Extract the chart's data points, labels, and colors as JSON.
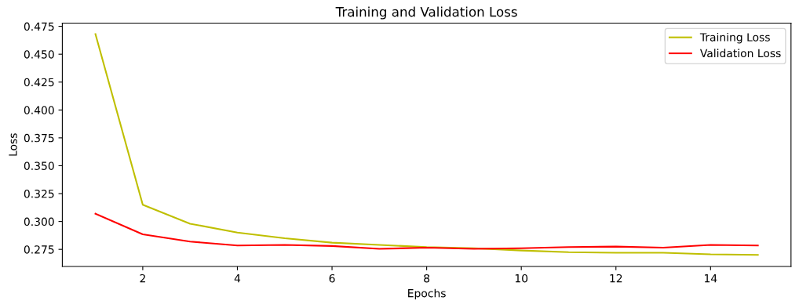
{
  "chart_data": {
    "type": "line",
    "title": "Training and Validation Loss",
    "xlabel": "Epochs",
    "ylabel": "Loss",
    "x": [
      1,
      2,
      3,
      4,
      5,
      6,
      7,
      8,
      9,
      10,
      11,
      12,
      13,
      14,
      15
    ],
    "series": [
      {
        "name": "Training Loss",
        "color": "#bfbf00",
        "values": [
          0.468,
          0.315,
          0.298,
          0.29,
          0.285,
          0.281,
          0.279,
          0.277,
          0.276,
          0.274,
          0.2725,
          0.272,
          0.272,
          0.2705,
          0.27
        ]
      },
      {
        "name": "Validation Loss",
        "color": "#ff0000",
        "values": [
          0.307,
          0.2885,
          0.282,
          0.2785,
          0.279,
          0.278,
          0.2755,
          0.2765,
          0.2755,
          0.276,
          0.277,
          0.2775,
          0.2765,
          0.279,
          0.2785
        ]
      }
    ],
    "xlim": [
      0.3,
      15.7
    ],
    "ylim": [
      0.2597,
      0.4779
    ],
    "xticks": [
      2,
      4,
      6,
      8,
      10,
      12,
      14
    ],
    "yticks": [
      {
        "value": 0.275,
        "label": "0.275"
      },
      {
        "value": 0.3,
        "label": "0.300"
      },
      {
        "value": 0.325,
        "label": "0.325"
      },
      {
        "value": 0.35,
        "label": "0.350"
      },
      {
        "value": 0.375,
        "label": "0.375"
      },
      {
        "value": 0.4,
        "label": "0.400"
      },
      {
        "value": 0.425,
        "label": "0.425"
      },
      {
        "value": 0.45,
        "label": "0.450"
      },
      {
        "value": 0.475,
        "label": "0.475"
      }
    ],
    "legend": "top right",
    "grid": false
  }
}
